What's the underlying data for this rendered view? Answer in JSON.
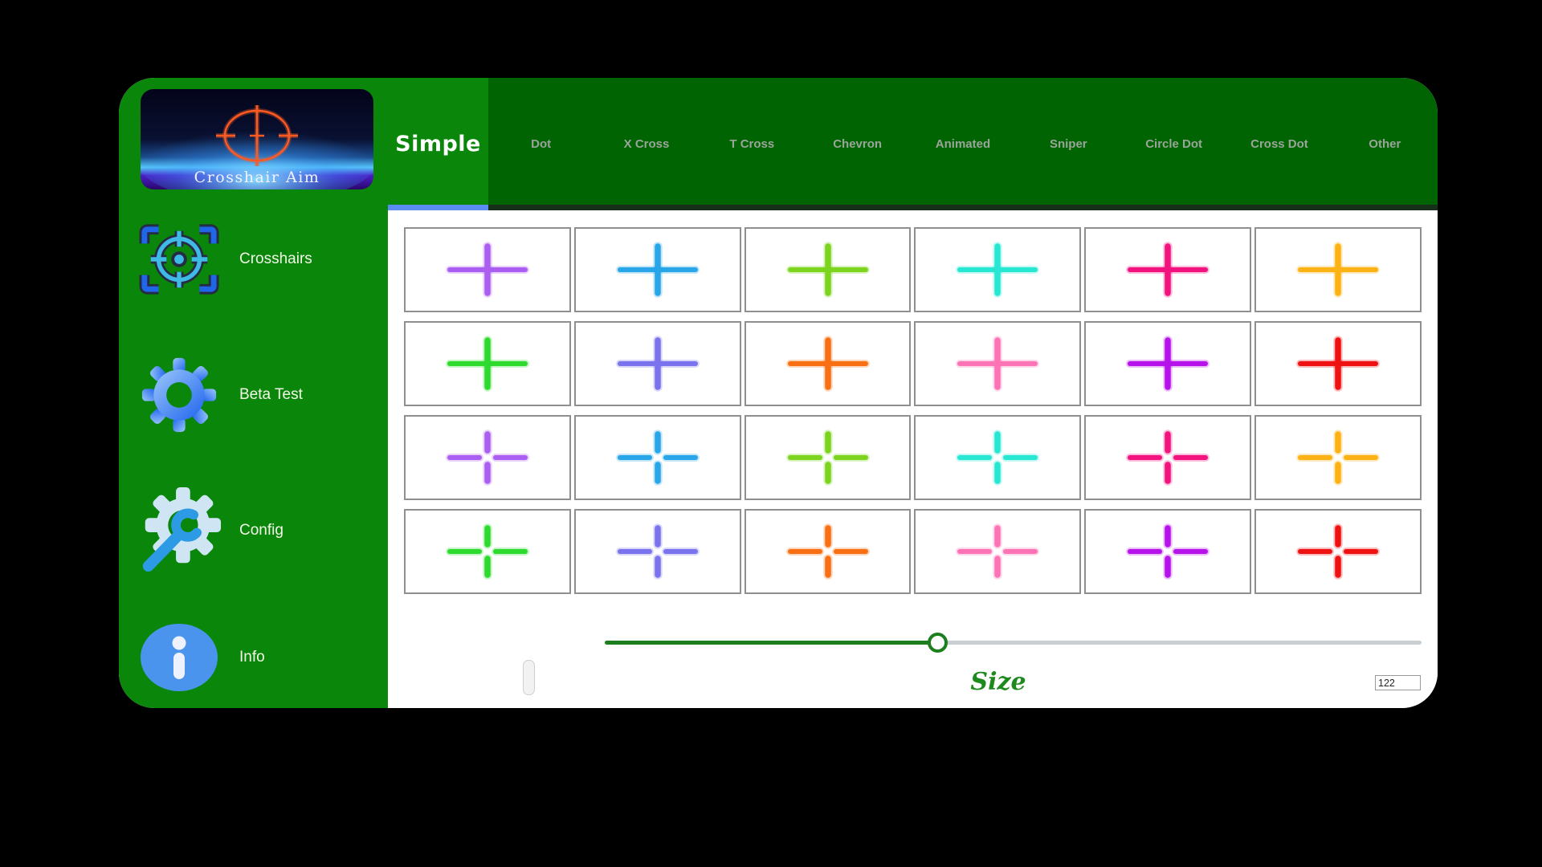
{
  "app": {
    "logo_title": "Crosshair Aim"
  },
  "sidebar": {
    "items": [
      {
        "label": "Crosshairs",
        "icon": "crosshair-target-icon"
      },
      {
        "label": "Beta Test",
        "icon": "gear-icon"
      },
      {
        "label": "Config",
        "icon": "wrench-gear-icon"
      },
      {
        "label": "Info",
        "icon": "info-icon"
      }
    ]
  },
  "tabs": {
    "active": "Simple",
    "items": [
      "Simple",
      "Dot",
      "X Cross",
      "T Cross",
      "Chevron",
      "Animated",
      "Sniper",
      "Circle Dot",
      "Cross Dot",
      "Other"
    ]
  },
  "crosshairs": {
    "rows": 4,
    "cols": 6,
    "cells": [
      {
        "name": "purple-cross",
        "color": "#ab5ff2",
        "style": "solid"
      },
      {
        "name": "blue-cross",
        "color": "#29a6ea",
        "style": "solid"
      },
      {
        "name": "lime-cross",
        "color": "#7cd41e",
        "style": "solid"
      },
      {
        "name": "turquoise-cross",
        "color": "#27e7d3",
        "style": "solid"
      },
      {
        "name": "pink-cross",
        "color": "#f2137f",
        "style": "solid"
      },
      {
        "name": "amber-cross",
        "color": "#fcb215",
        "style": "solid"
      },
      {
        "name": "green-cross",
        "color": "#2eda2e",
        "style": "solid"
      },
      {
        "name": "periwinkle-cross",
        "color": "#7b73ee",
        "style": "solid"
      },
      {
        "name": "orange-cross",
        "color": "#f96f13",
        "style": "solid"
      },
      {
        "name": "hotpink-cross",
        "color": "#fc74b6",
        "style": "solid"
      },
      {
        "name": "violet-cross",
        "color": "#b513e9",
        "style": "solid"
      },
      {
        "name": "red-cross",
        "color": "#ee1312",
        "style": "solid"
      },
      {
        "name": "purple-gap-cross",
        "color": "#ab5ff2",
        "style": "gap"
      },
      {
        "name": "blue-gap-cross",
        "color": "#29a6ea",
        "style": "gap"
      },
      {
        "name": "lime-gap-cross",
        "color": "#7cd41e",
        "style": "gap"
      },
      {
        "name": "turquoise-gap-cross",
        "color": "#27e7d3",
        "style": "gap"
      },
      {
        "name": "pink-gap-cross",
        "color": "#f2137f",
        "style": "gap"
      },
      {
        "name": "amber-gap-cross",
        "color": "#fcb215",
        "style": "gap"
      },
      {
        "name": "green-gap-cross",
        "color": "#2eda2e",
        "style": "gap"
      },
      {
        "name": "periwinkle-gap-cross",
        "color": "#7b73ee",
        "style": "gap"
      },
      {
        "name": "orange-gap-cross",
        "color": "#f96f13",
        "style": "gap"
      },
      {
        "name": "hotpink-gap-cross",
        "color": "#fc74b6",
        "style": "gap"
      },
      {
        "name": "violet-gap-cross",
        "color": "#b513e9",
        "style": "gap"
      },
      {
        "name": "red-gap-cross",
        "color": "#ee1312",
        "style": "gap"
      }
    ]
  },
  "size_control": {
    "label": "Size",
    "value": "122",
    "slider_percent": 40.8
  },
  "colors": {
    "sidebar_green": "#0a870a",
    "tabbar_green": "#006402",
    "active_tab_underline": "#5a8cf2",
    "slider_green": "#1c7e1c",
    "size_label_green": "#1e8a1e",
    "logo_crosshair_orange": "#ff5a20"
  }
}
